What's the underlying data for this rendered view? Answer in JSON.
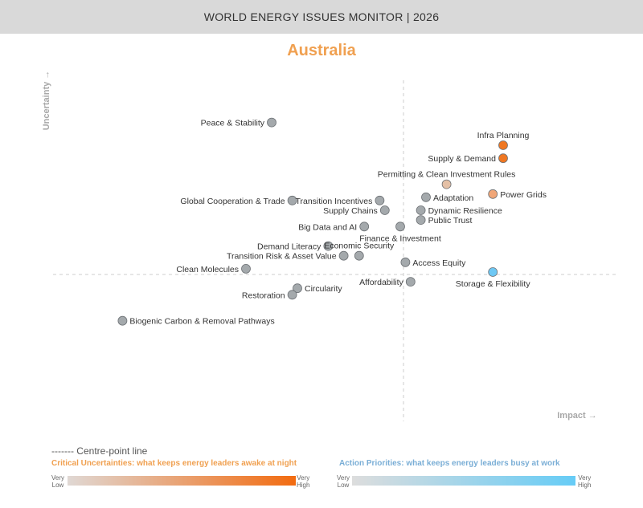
{
  "header": {
    "title": "WORLD ENERGY ISSUES MONITOR | 2026"
  },
  "country": "Australia",
  "chart_data": {
    "type": "scatter",
    "title": "Australia",
    "xlabel": "Impact →",
    "ylabel": "Uncertainty →",
    "xlim": [
      0,
      100
    ],
    "ylim": [
      0,
      100
    ],
    "centre": {
      "x": 50,
      "y": 50
    },
    "colors": {
      "neutral": "#a4a9ac",
      "priority": "#6ec8f4",
      "uncertainty_high": "#ef7722",
      "uncertainty_low": "#e4c0a6"
    },
    "points": [
      {
        "label": "Peace & Stability",
        "x": 40,
        "y": 87,
        "color": "#a4a9ac",
        "label_side": "left"
      },
      {
        "label": "Infra Planning",
        "x": 85,
        "y": 80,
        "color": "#ef7722",
        "label_side": "above"
      },
      {
        "label": "Supply & Demand",
        "x": 85,
        "y": 76,
        "color": "#ef7722",
        "label_side": "left"
      },
      {
        "label": "Permitting & Clean Investment Rules",
        "x": 74,
        "y": 68,
        "color": "#e4c0a6",
        "label_side": "above"
      },
      {
        "label": "Power Grids",
        "x": 83,
        "y": 65,
        "color": "#f0a678",
        "label_side": "right"
      },
      {
        "label": "Adaptation",
        "x": 70,
        "y": 64,
        "color": "#a4a9ac",
        "label_side": "right"
      },
      {
        "label": "Global Cooperation & Trade",
        "x": 44,
        "y": 63,
        "color": "#a4a9ac",
        "label_side": "left"
      },
      {
        "label": "Transition Incentives",
        "x": 61,
        "y": 63,
        "color": "#a4a9ac",
        "label_side": "left"
      },
      {
        "label": "Supply Chains",
        "x": 62,
        "y": 60,
        "color": "#a4a9ac",
        "label_side": "left"
      },
      {
        "label": "Dynamic Resilience",
        "x": 69,
        "y": 60,
        "color": "#a4a9ac",
        "label_side": "right"
      },
      {
        "label": "Public Trust",
        "x": 69,
        "y": 57,
        "color": "#a4a9ac",
        "label_side": "right"
      },
      {
        "label": "Big Data and AI",
        "x": 58,
        "y": 55,
        "color": "#a4a9ac",
        "label_side": "left"
      },
      {
        "label": "Finance & Investment",
        "x": 65,
        "y": 55,
        "color": "#a4a9ac",
        "label_side": "below"
      },
      {
        "label": "Demand Literacy",
        "x": 51,
        "y": 49,
        "color": "#a4a9ac",
        "label_side": "left"
      },
      {
        "label": "Economic Security",
        "x": 57,
        "y": 46,
        "color": "#a4a9ac",
        "label_side": "above"
      },
      {
        "label": "Transition Risk & Asset Value",
        "x": 54,
        "y": 46,
        "color": "#a4a9ac",
        "label_side": "left"
      },
      {
        "label": "Access Equity",
        "x": 66,
        "y": 44,
        "color": "#a4a9ac",
        "label_side": "right"
      },
      {
        "label": "Clean Molecules",
        "x": 35,
        "y": 42,
        "color": "#a4a9ac",
        "label_side": "left"
      },
      {
        "label": "Storage & Flexibility",
        "x": 83,
        "y": 41,
        "color": "#6ec8f4",
        "label_side": "below"
      },
      {
        "label": "Affordability",
        "x": 67,
        "y": 38,
        "color": "#a4a9ac",
        "label_side": "left"
      },
      {
        "label": "Circularity",
        "x": 45,
        "y": 36,
        "color": "#a4a9ac",
        "label_side": "right"
      },
      {
        "label": "Restoration",
        "x": 44,
        "y": 34,
        "color": "#a4a9ac",
        "label_side": "left"
      },
      {
        "label": "Biogenic Carbon & Removal Pathways",
        "x": 11,
        "y": 26,
        "color": "#a4a9ac",
        "label_side": "right"
      }
    ]
  },
  "footer": {
    "centre_line_label": "------- Centre-point line",
    "critical_title": "Critical Uncertainties: what keeps energy leaders awake at night",
    "action_title": "Action Priorities: what keeps energy leaders busy at work",
    "very": "Very",
    "low": "Low",
    "high": "High"
  }
}
